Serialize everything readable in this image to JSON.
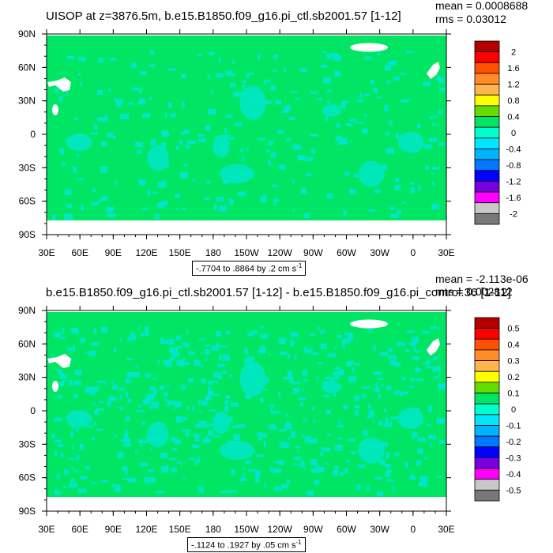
{
  "chart_data": [
    {
      "type": "heatmap",
      "title": "UISOP at z=3876.5m, b.e15.B1850.f09_g16.pi_ctl.sb2001.57 [1-12]",
      "stats": {
        "mean": "mean = 0.0008688",
        "rms": "rms = 0.03012"
      },
      "contour_info": "-.7704 to .8864 by .2 cm s",
      "contour_unit_exp": "-1",
      "x_tick_labels": [
        "30E",
        "60E",
        "90E",
        "120E",
        "150E",
        "180",
        "150W",
        "120W",
        "90W",
        "60W",
        "30W",
        "0",
        "30E"
      ],
      "y_tick_labels": [
        "90N",
        "60N",
        "30N",
        "0",
        "30S",
        "60S",
        "90S"
      ],
      "colorbar_levels": [
        "2",
        "1.6",
        "1.2",
        "0.8",
        "0.4",
        "0",
        "-0.4",
        "-0.8",
        "-1.2",
        "-1.6",
        "-2"
      ],
      "colorbar_colors": [
        "#b40000",
        "#ff0000",
        "#ff5000",
        "#ff8c28",
        "#ffb450",
        "#ffff00",
        "#64dc00",
        "#00e664",
        "#00ffcc",
        "#00e6ff",
        "#00b4ff",
        "#0078ff",
        "#0000ff",
        "#7800dc",
        "#ff00ff",
        "#c8c8c8",
        "#787878"
      ],
      "field_color": "#00e664",
      "anomaly_color": "#00e6c8"
    },
    {
      "type": "heatmap",
      "title": "b.e15.B1850.f09_g16.pi_ctl.sb2001.57 [1-12] - b.e15.B1850.f09_g16.pi_control.36 [1-12]",
      "stats": {
        "mean": "mean = -2.113e-06",
        "rms": "rms = 0.002812"
      },
      "contour_info": "-.1124 to .1927 by .05 cm s",
      "contour_unit_exp": "-1",
      "x_tick_labels": [
        "30E",
        "60E",
        "90E",
        "120E",
        "150E",
        "180",
        "150W",
        "120W",
        "90W",
        "60W",
        "30W",
        "0",
        "30E"
      ],
      "y_tick_labels": [
        "90N",
        "60N",
        "30N",
        "0",
        "30S",
        "60S",
        "90S"
      ],
      "colorbar_levels": [
        "0.5",
        "0.4",
        "0.3",
        "0.2",
        "0.1",
        "0",
        "-0.1",
        "-0.2",
        "-0.3",
        "-0.4",
        "-0.5"
      ],
      "colorbar_colors": [
        "#b40000",
        "#ff0000",
        "#ff5000",
        "#ff8c28",
        "#ffb450",
        "#ffff00",
        "#64dc00",
        "#00e664",
        "#00ffcc",
        "#00e6ff",
        "#00b4ff",
        "#0078ff",
        "#0000ff",
        "#7800dc",
        "#ff00ff",
        "#c8c8c8",
        "#787878"
      ],
      "field_color": "#00e664",
      "anomaly_color": "#00e6c8"
    }
  ]
}
